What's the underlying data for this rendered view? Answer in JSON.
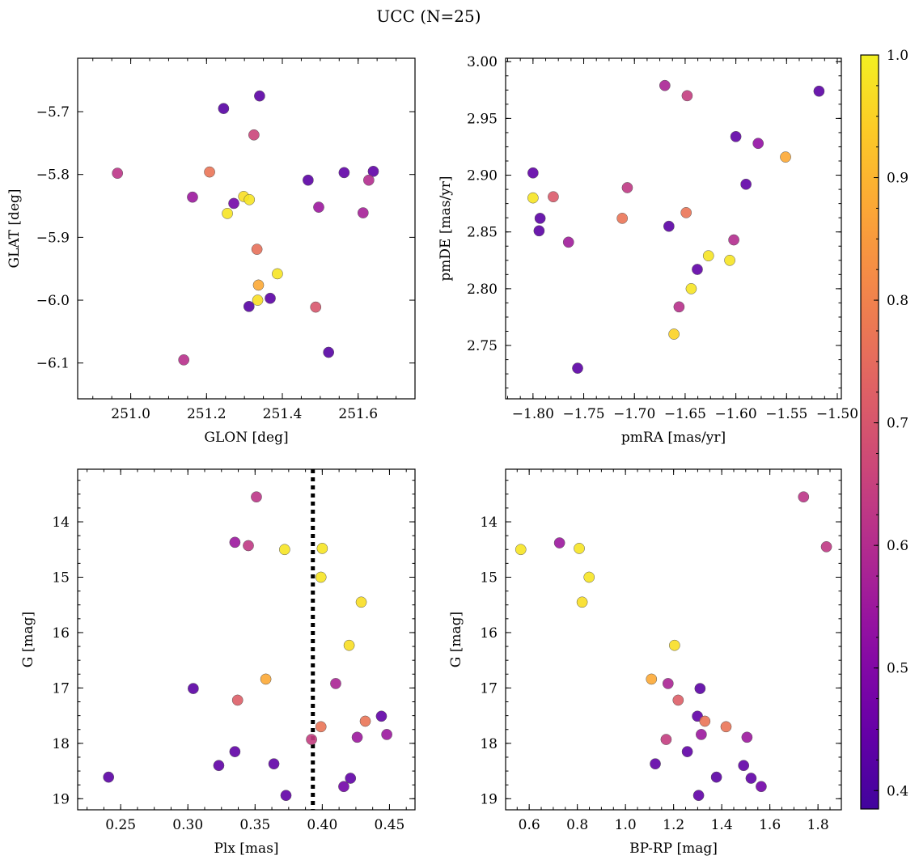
{
  "suptitle": "UCC (N=25)",
  "colorbar": {
    "ticks": [
      0.4,
      0.5,
      0.6,
      0.7,
      0.8,
      0.9,
      1.0
    ],
    "tick_labels": [
      "0.4",
      "0.5",
      "0.6",
      "0.7",
      "0.8",
      "0.9",
      "1.0"
    ],
    "range": [
      0.385,
      1.0
    ],
    "colormap": "plasma"
  },
  "chart_data": [
    {
      "id": "glon-glat",
      "type": "scatter",
      "xlabel": "GLON [deg]",
      "ylabel": "GLAT [deg]",
      "xlim": [
        250.86,
        251.75
      ],
      "ylim": [
        -6.157,
        -5.615
      ],
      "y_inverted": false,
      "xticks": [
        251.0,
        251.2,
        251.4,
        251.6
      ],
      "xtick_labels": [
        "251.0",
        "251.2",
        "251.4",
        "251.6"
      ],
      "yticks": [
        -5.7,
        -5.8,
        -5.9,
        -6.0,
        -6.1
      ],
      "ytick_labels": [
        "−5.7",
        "−5.8",
        "−5.9",
        "−6.0",
        "−6.1"
      ],
      "points": [
        {
          "x": 251.245,
          "y": -5.695,
          "c": 0.42
        },
        {
          "x": 251.34,
          "y": -5.675,
          "c": 0.43
        },
        {
          "x": 251.325,
          "y": -5.737,
          "c": 0.66
        },
        {
          "x": 250.965,
          "y": -5.798,
          "c": 0.62
        },
        {
          "x": 251.208,
          "y": -5.796,
          "c": 0.77
        },
        {
          "x": 251.163,
          "y": -5.836,
          "c": 0.55
        },
        {
          "x": 251.272,
          "y": -5.846,
          "c": 0.47
        },
        {
          "x": 251.298,
          "y": -5.835,
          "c": 0.97
        },
        {
          "x": 251.313,
          "y": -5.84,
          "c": 0.98
        },
        {
          "x": 251.255,
          "y": -5.862,
          "c": 0.98
        },
        {
          "x": 251.468,
          "y": -5.809,
          "c": 0.43
        },
        {
          "x": 251.563,
          "y": -5.797,
          "c": 0.44
        },
        {
          "x": 251.64,
          "y": -5.795,
          "c": 0.44
        },
        {
          "x": 251.628,
          "y": -5.809,
          "c": 0.6
        },
        {
          "x": 251.496,
          "y": -5.852,
          "c": 0.55
        },
        {
          "x": 251.613,
          "y": -5.861,
          "c": 0.57
        },
        {
          "x": 251.333,
          "y": -5.919,
          "c": 0.76
        },
        {
          "x": 251.387,
          "y": -5.958,
          "c": 0.98
        },
        {
          "x": 251.337,
          "y": -5.976,
          "c": 0.88
        },
        {
          "x": 251.335,
          "y": -6.0,
          "c": 0.97
        },
        {
          "x": 251.312,
          "y": -6.01,
          "c": 0.42
        },
        {
          "x": 251.368,
          "y": -5.997,
          "c": 0.43
        },
        {
          "x": 251.488,
          "y": -6.011,
          "c": 0.7
        },
        {
          "x": 251.522,
          "y": -6.083,
          "c": 0.42
        },
        {
          "x": 251.14,
          "y": -6.095,
          "c": 0.61
        }
      ]
    },
    {
      "id": "pmra-pmde",
      "type": "scatter",
      "xlabel": "pmRA [mas/yr]",
      "ylabel": "pmDE [mas/yr]",
      "xlim": [
        -1.827,
        -1.496
      ],
      "ylim": [
        2.703,
        3.003
      ],
      "y_inverted": false,
      "xticks": [
        -1.8,
        -1.75,
        -1.7,
        -1.65,
        -1.6,
        -1.55,
        -1.5
      ],
      "xtick_labels": [
        "−1.80",
        "−1.75",
        "−1.70",
        "−1.65",
        "−1.60",
        "−1.55",
        "−1.50"
      ],
      "yticks": [
        2.75,
        2.8,
        2.85,
        2.9,
        2.95,
        3.0
      ],
      "ytick_labels": [
        "2.75",
        "2.80",
        "2.85",
        "2.90",
        "2.95",
        "3.00"
      ],
      "points": [
        {
          "x": -1.67,
          "y": 2.979,
          "c": 0.58
        },
        {
          "x": -1.648,
          "y": 2.97,
          "c": 0.64
        },
        {
          "x": -1.518,
          "y": 2.974,
          "c": 0.43
        },
        {
          "x": -1.6,
          "y": 2.934,
          "c": 0.44
        },
        {
          "x": -1.578,
          "y": 2.928,
          "c": 0.53
        },
        {
          "x": -1.551,
          "y": 2.916,
          "c": 0.88
        },
        {
          "x": -1.8,
          "y": 2.902,
          "c": 0.44
        },
        {
          "x": -1.59,
          "y": 2.892,
          "c": 0.44
        },
        {
          "x": -1.707,
          "y": 2.889,
          "c": 0.63
        },
        {
          "x": -1.8,
          "y": 2.88,
          "c": 0.98
        },
        {
          "x": -1.78,
          "y": 2.881,
          "c": 0.71
        },
        {
          "x": -1.793,
          "y": 2.862,
          "c": 0.43
        },
        {
          "x": -1.712,
          "y": 2.862,
          "c": 0.77
        },
        {
          "x": -1.649,
          "y": 2.867,
          "c": 0.77
        },
        {
          "x": -1.666,
          "y": 2.855,
          "c": 0.43
        },
        {
          "x": -1.794,
          "y": 2.851,
          "c": 0.43
        },
        {
          "x": -1.765,
          "y": 2.841,
          "c": 0.56
        },
        {
          "x": -1.602,
          "y": 2.843,
          "c": 0.6
        },
        {
          "x": -1.638,
          "y": 2.817,
          "c": 0.44
        },
        {
          "x": -1.627,
          "y": 2.829,
          "c": 0.98
        },
        {
          "x": -1.606,
          "y": 2.825,
          "c": 0.98
        },
        {
          "x": -1.644,
          "y": 2.8,
          "c": 0.98
        },
        {
          "x": -1.656,
          "y": 2.784,
          "c": 0.61
        },
        {
          "x": -1.661,
          "y": 2.76,
          "c": 0.95
        },
        {
          "x": -1.756,
          "y": 2.73,
          "c": 0.43
        }
      ]
    },
    {
      "id": "plx-g",
      "type": "scatter",
      "xlabel": "Plx [mas]",
      "ylabel": "G [mag]",
      "xlim": [
        0.218,
        0.469
      ],
      "ylim": [
        13.05,
        19.2
      ],
      "y_inverted": true,
      "xticks": [
        0.25,
        0.3,
        0.35,
        0.4,
        0.45
      ],
      "xtick_labels": [
        "0.25",
        "0.30",
        "0.35",
        "0.40",
        "0.45"
      ],
      "yticks": [
        14,
        15,
        16,
        17,
        18,
        19
      ],
      "ytick_labels": [
        "14",
        "15",
        "16",
        "17",
        "18",
        "19"
      ],
      "vline": {
        "x": 0.393,
        "style": "dotted"
      },
      "points": [
        {
          "x": 0.351,
          "y": 13.55,
          "c": 0.62
        },
        {
          "x": 0.335,
          "y": 14.37,
          "c": 0.55
        },
        {
          "x": 0.345,
          "y": 14.43,
          "c": 0.63
        },
        {
          "x": 0.372,
          "y": 14.5,
          "c": 0.98
        },
        {
          "x": 0.4,
          "y": 14.48,
          "c": 0.98
        },
        {
          "x": 0.399,
          "y": 15.0,
          "c": 0.98
        },
        {
          "x": 0.429,
          "y": 15.45,
          "c": 0.97
        },
        {
          "x": 0.42,
          "y": 16.23,
          "c": 0.97
        },
        {
          "x": 0.358,
          "y": 16.84,
          "c": 0.88
        },
        {
          "x": 0.41,
          "y": 16.92,
          "c": 0.58
        },
        {
          "x": 0.304,
          "y": 17.01,
          "c": 0.43
        },
        {
          "x": 0.337,
          "y": 17.22,
          "c": 0.72
        },
        {
          "x": 0.444,
          "y": 17.51,
          "c": 0.44
        },
        {
          "x": 0.432,
          "y": 17.6,
          "c": 0.77
        },
        {
          "x": 0.399,
          "y": 17.7,
          "c": 0.77
        },
        {
          "x": 0.448,
          "y": 17.84,
          "c": 0.55
        },
        {
          "x": 0.426,
          "y": 17.89,
          "c": 0.55
        },
        {
          "x": 0.392,
          "y": 17.93,
          "c": 0.64
        },
        {
          "x": 0.335,
          "y": 18.15,
          "c": 0.44
        },
        {
          "x": 0.323,
          "y": 18.4,
          "c": 0.44
        },
        {
          "x": 0.364,
          "y": 18.37,
          "c": 0.44
        },
        {
          "x": 0.241,
          "y": 18.61,
          "c": 0.43
        },
        {
          "x": 0.421,
          "y": 18.63,
          "c": 0.44
        },
        {
          "x": 0.416,
          "y": 18.78,
          "c": 0.47
        },
        {
          "x": 0.373,
          "y": 18.94,
          "c": 0.44
        }
      ]
    },
    {
      "id": "bprp-g",
      "type": "scatter",
      "xlabel": "BP-RP [mag]",
      "ylabel": "G [mag]",
      "xlim": [
        0.502,
        1.897
      ],
      "ylim": [
        13.05,
        19.2
      ],
      "y_inverted": true,
      "xticks": [
        0.6,
        0.8,
        1.0,
        1.2,
        1.4,
        1.6,
        1.8
      ],
      "xtick_labels": [
        "0.6",
        "0.8",
        "1.0",
        "1.2",
        "1.4",
        "1.6",
        "1.8"
      ],
      "yticks": [
        14,
        15,
        16,
        17,
        18,
        19
      ],
      "ytick_labels": [
        "14",
        "15",
        "16",
        "17",
        "18",
        "19"
      ],
      "points": [
        {
          "x": 1.74,
          "y": 13.55,
          "c": 0.62
        },
        {
          "x": 1.835,
          "y": 14.45,
          "c": 0.63
        },
        {
          "x": 0.565,
          "y": 14.5,
          "c": 0.98
        },
        {
          "x": 0.726,
          "y": 14.38,
          "c": 0.55
        },
        {
          "x": 0.808,
          "y": 14.48,
          "c": 0.98
        },
        {
          "x": 0.849,
          "y": 15.0,
          "c": 0.98
        },
        {
          "x": 0.82,
          "y": 15.45,
          "c": 0.97
        },
        {
          "x": 1.204,
          "y": 16.23,
          "c": 0.97
        },
        {
          "x": 1.108,
          "y": 16.84,
          "c": 0.88
        },
        {
          "x": 1.177,
          "y": 16.92,
          "c": 0.58
        },
        {
          "x": 1.31,
          "y": 17.01,
          "c": 0.43
        },
        {
          "x": 1.219,
          "y": 17.22,
          "c": 0.72
        },
        {
          "x": 1.299,
          "y": 17.51,
          "c": 0.44
        },
        {
          "x": 1.33,
          "y": 17.6,
          "c": 0.77
        },
        {
          "x": 1.418,
          "y": 17.7,
          "c": 0.77
        },
        {
          "x": 1.315,
          "y": 17.84,
          "c": 0.55
        },
        {
          "x": 1.505,
          "y": 17.89,
          "c": 0.55
        },
        {
          "x": 1.169,
          "y": 17.93,
          "c": 0.64
        },
        {
          "x": 1.257,
          "y": 18.15,
          "c": 0.44
        },
        {
          "x": 1.124,
          "y": 18.37,
          "c": 0.44
        },
        {
          "x": 1.491,
          "y": 18.4,
          "c": 0.44
        },
        {
          "x": 1.378,
          "y": 18.61,
          "c": 0.43
        },
        {
          "x": 1.522,
          "y": 18.63,
          "c": 0.44
        },
        {
          "x": 1.564,
          "y": 18.78,
          "c": 0.47
        },
        {
          "x": 1.304,
          "y": 18.94,
          "c": 0.44
        }
      ]
    }
  ]
}
